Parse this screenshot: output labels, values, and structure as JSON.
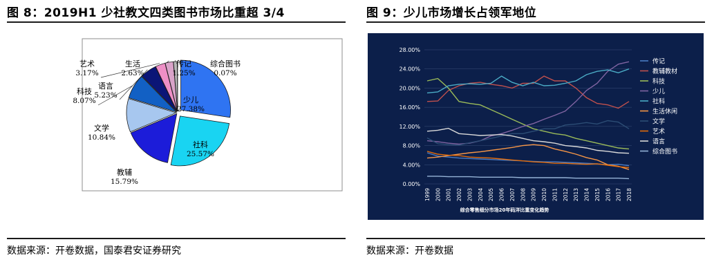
{
  "left": {
    "title": "图 8：2019H1 少社教文四类图书市场比重超 3/4",
    "source": "数据来源：开卷数据，国泰君安证券研究"
  },
  "right": {
    "title": "图 9：少儿市场增长占领军地位",
    "source": "数据来源：开卷数据"
  },
  "chart_data": [
    {
      "type": "pie",
      "labels": [
        "少儿",
        "社科",
        "教辅",
        "文学",
        "科技",
        "语言",
        "艺术",
        "生活",
        "传记",
        "综合图书"
      ],
      "values": [
        27.38,
        25.57,
        15.79,
        10.84,
        8.07,
        5.23,
        3.17,
        2.63,
        1.25,
        0.07
      ],
      "value_labels": [
        "27.38%",
        "25.57%",
        "15.79%",
        "10.84%",
        "8.07%",
        "5.23%",
        "3.17%",
        "2.63%",
        "1.25%",
        "0.07%"
      ],
      "colors": [
        "#2f74f2",
        "#19d4f2",
        "#1c1cd9",
        "#a7c7ef",
        "#1260c4",
        "#0b1577",
        "#ee8fc6",
        "#d9a3c9",
        "#b7b7b7",
        "#ffffff"
      ],
      "exploded": [
        "少儿",
        "社科"
      ]
    },
    {
      "type": "line",
      "subtitle": "综合零售细分市场20年码洋比重变化趋势",
      "categories": [
        "1999",
        "2000",
        "2001",
        "2002",
        "2003",
        "2004",
        "2005",
        "2006",
        "2007",
        "2008",
        "2009",
        "2010",
        "2011",
        "2012",
        "2013",
        "2014",
        "2015",
        "2016",
        "2017",
        "2018"
      ],
      "y_ticks": [
        "0.00%",
        "4.00%",
        "8.00%",
        "12.00%",
        "16.00%",
        "20.00%",
        "24.00%",
        "28.00%"
      ],
      "ylim": [
        0,
        28
      ],
      "background": "#0c1f4a",
      "legend_position": "right",
      "series": [
        {
          "name": "传记",
          "color": "#4a7cc4",
          "values": [
            6.5,
            5.8,
            5.6,
            5.4,
            5.3,
            5.2,
            5.1,
            5.0,
            4.9,
            4.8,
            4.7,
            4.6,
            4.6,
            4.5,
            4.4,
            4.3,
            4.2,
            4.0,
            4.1,
            3.8
          ]
        },
        {
          "name": "教辅教材",
          "color": "#c0504d",
          "values": [
            17.2,
            17.3,
            19.5,
            20.5,
            21.0,
            21.2,
            20.8,
            20.5,
            20.0,
            21.0,
            21.0,
            22.5,
            21.5,
            21.5,
            20.0,
            18.0,
            16.8,
            16.5,
            15.8,
            17.2
          ]
        },
        {
          "name": "科技",
          "color": "#9bbb59",
          "values": [
            21.5,
            22.0,
            20.0,
            17.2,
            16.8,
            16.5,
            15.5,
            14.5,
            13.5,
            12.5,
            11.5,
            11.0,
            10.5,
            10.2,
            9.5,
            9.0,
            8.5,
            8.0,
            7.5,
            7.3
          ]
        },
        {
          "name": "少儿",
          "color": "#8064a2",
          "values": [
            9.0,
            8.8,
            8.5,
            8.3,
            8.5,
            9.0,
            10.0,
            10.5,
            11.2,
            12.0,
            12.6,
            13.5,
            14.3,
            15.2,
            17.2,
            19.5,
            21.0,
            23.5,
            25.0,
            25.5
          ]
        },
        {
          "name": "社科",
          "color": "#4bacc6",
          "values": [
            19.0,
            19.2,
            20.5,
            20.8,
            20.9,
            20.8,
            21.0,
            22.5,
            21.2,
            20.5,
            21.2,
            20.5,
            20.6,
            21.0,
            21.5,
            22.8,
            23.5,
            23.8,
            23.2,
            24.0
          ]
        },
        {
          "name": "生活休闲",
          "color": "#f79646",
          "values": [
            5.4,
            5.6,
            5.9,
            6.2,
            6.5,
            6.7,
            7.0,
            7.3,
            7.6,
            8.0,
            8.2,
            8.0,
            7.3,
            6.8,
            6.2,
            5.5,
            5.0,
            4.0,
            3.7,
            3.0
          ]
        },
        {
          "name": "文学",
          "color": "#2c4d75",
          "values": [
            9.6,
            8.4,
            8.2,
            8.1,
            8.6,
            9.0,
            9.5,
            10.0,
            10.5,
            10.5,
            11.0,
            11.5,
            11.5,
            12.3,
            12.5,
            12.8,
            12.5,
            13.2,
            12.9,
            11.5
          ]
        },
        {
          "name": "艺术",
          "color": "#e46c0a",
          "values": [
            6.8,
            6.2,
            6.0,
            5.9,
            5.6,
            5.5,
            5.4,
            5.2,
            5.0,
            4.8,
            4.6,
            4.5,
            4.3,
            4.3,
            4.2,
            4.1,
            4.2,
            3.9,
            3.6,
            3.4
          ]
        },
        {
          "name": "语言",
          "color": "#d9d9d9",
          "values": [
            11.0,
            11.2,
            11.6,
            10.5,
            10.3,
            10.1,
            10.2,
            10.3,
            10.0,
            9.5,
            9.0,
            8.8,
            8.5,
            8.0,
            7.8,
            7.5,
            7.0,
            6.8,
            6.5,
            6.4
          ]
        },
        {
          "name": "综合图书",
          "color": "#95b3d7",
          "values": [
            1.6,
            1.6,
            1.5,
            1.5,
            1.5,
            1.4,
            1.4,
            1.4,
            1.4,
            1.3,
            1.3,
            1.3,
            1.3,
            1.3,
            1.2,
            1.2,
            1.2,
            1.2,
            1.2,
            1.1
          ]
        }
      ]
    }
  ]
}
